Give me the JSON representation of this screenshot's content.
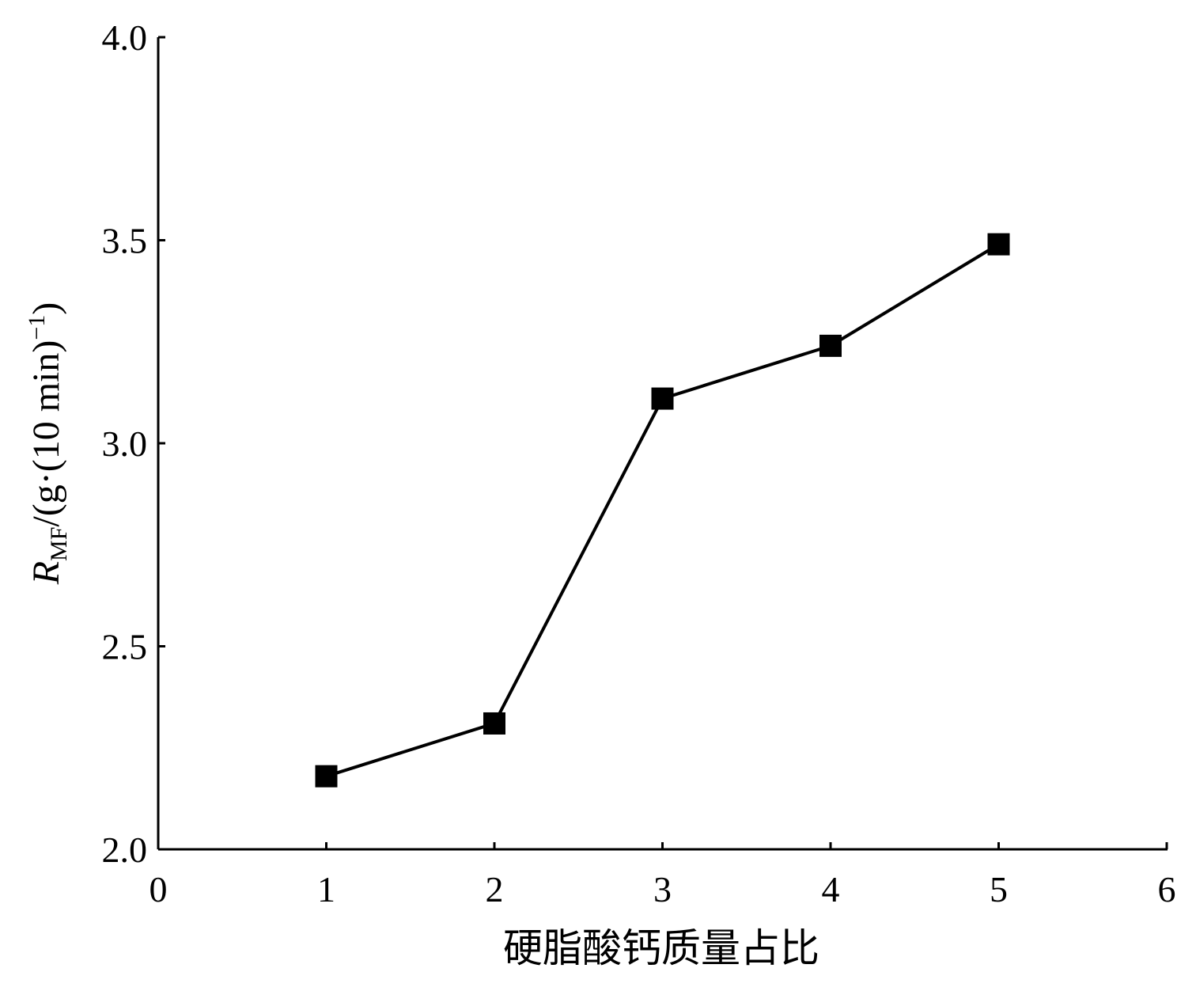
{
  "chart_data": {
    "type": "line",
    "xlabel": "硬脂酸钙质量占比",
    "ylabel": [
      "R",
      "MF",
      "/(g·(10 min)",
      "−1",
      ")"
    ],
    "x": [
      1,
      2,
      3,
      4,
      5
    ],
    "series": [
      {
        "color": "#000000",
        "marker": "square",
        "values": [
          2.18,
          2.31,
          3.11,
          3.24,
          3.49
        ]
      }
    ],
    "xlim": [
      0,
      6
    ],
    "xticks": [
      0,
      1,
      2,
      3,
      4,
      5,
      6
    ],
    "ylim": [
      2,
      4
    ],
    "yticks": [
      {
        "value": 2,
        "label": "2.0"
      },
      2.5,
      {
        "value": 3,
        "label": "3.0"
      },
      3.5,
      {
        "value": 4,
        "label": "4.0"
      }
    ]
  }
}
